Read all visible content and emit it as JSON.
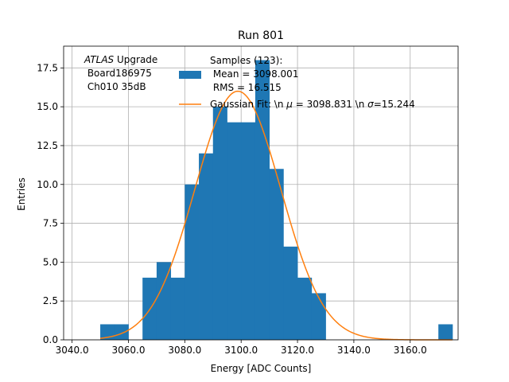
{
  "chart_data": {
    "type": "bar",
    "title": "Run 801",
    "xlabel": "Energy [ADC Counts]",
    "ylabel": "Entries",
    "xlim": [
      3037,
      3177
    ],
    "ylim": [
      0,
      18.9
    ],
    "grid": true,
    "x_ticks": [
      3040,
      3060,
      3080,
      3100,
      3120,
      3140,
      3160
    ],
    "x_tick_labels": [
      "3040.0",
      "3060.0",
      "3080.0",
      "3100.0",
      "3120.0",
      "3140.0",
      "3160.0"
    ],
    "y_ticks": [
      0,
      2.5,
      5,
      7.5,
      10,
      12.5,
      15,
      17.5
    ],
    "y_tick_labels": [
      "0.0",
      "2.5",
      "5.0",
      "7.5",
      "10.0",
      "12.5",
      "15.0",
      "17.5"
    ],
    "bin_width": 5,
    "histogram": {
      "bin_starts": [
        3050,
        3055,
        3060,
        3065,
        3070,
        3075,
        3080,
        3085,
        3090,
        3095,
        3100,
        3105,
        3110,
        3115,
        3120,
        3125,
        3130,
        3135,
        3140,
        3145,
        3150,
        3155,
        3160,
        3165,
        3170
      ],
      "counts": [
        1,
        1,
        0,
        4,
        5,
        4,
        10,
        12,
        15,
        14,
        14,
        18,
        11,
        6,
        4,
        3,
        0,
        0,
        0,
        0,
        0,
        0,
        0,
        0,
        1
      ],
      "color": "#1f77b4"
    },
    "fit": {
      "mu": 3098.831,
      "sigma": 15.244,
      "amplitude": 16.0,
      "x_range": [
        3050,
        3175
      ],
      "color": "#ff7f0e"
    },
    "legend": {
      "placement": "top-center",
      "hist_label": [
        "Samples (123):",
        " Mean = 3098.001",
        " RMS = 16.515"
      ],
      "fit_label_prefix": "Gaussian Fit: \\n ",
      "fit_mu_symbol": "μ",
      "fit_mu_text": " = 3098.831 \\n ",
      "fit_sigma_symbol": "σ",
      "fit_sigma_text": "=15.244"
    },
    "annotation": {
      "line1_italic": "ATLAS",
      "line1_rest": " Upgrade",
      "line2": " Board186975",
      "line3": " Ch010 35dB"
    }
  }
}
